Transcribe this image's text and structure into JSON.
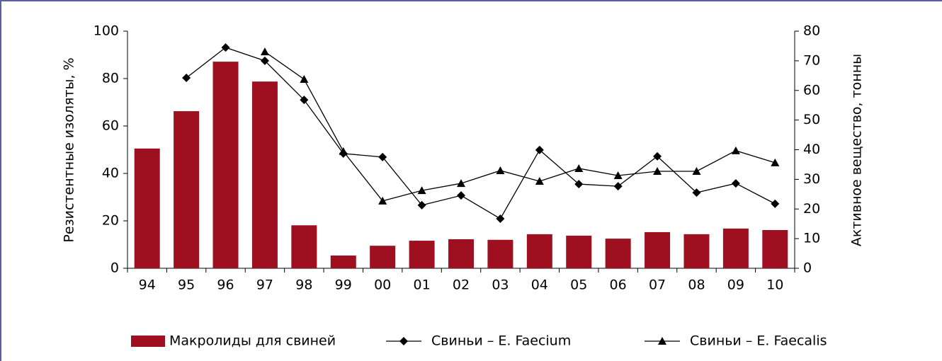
{
  "chart_data": {
    "type": "bar_line",
    "ylabel": "Резистентные изоляты, %",
    "y2label": "Активное вещество, тонны",
    "categories": [
      "94",
      "95",
      "96",
      "97",
      "98",
      "99",
      "00",
      "01",
      "02",
      "03",
      "04",
      "05",
      "06",
      "07",
      "08",
      "09",
      "10"
    ],
    "series": [
      {
        "name": "Макролиды для свиней",
        "type": "bar",
        "axis": "y2",
        "color": "#9e1020",
        "values": [
          40.4,
          53,
          69.7,
          63,
          14.5,
          4.3,
          7.6,
          9.3,
          9.8,
          9.6,
          11.5,
          11,
          10,
          12.2,
          11.5,
          13.4,
          12.9
        ]
      },
      {
        "name": "Свиньи – E. Faecium",
        "type": "line",
        "marker": "diamond",
        "color": "#000000",
        "values": [
          null,
          80.3,
          93.1,
          87.5,
          71,
          48.4,
          46.9,
          26.6,
          30.7,
          20.9,
          49.9,
          35.5,
          34.6,
          47.2,
          31.9,
          35.8,
          27.2
        ]
      },
      {
        "name": "Свиньи – E. Faecalis",
        "type": "line",
        "marker": "triangle",
        "color": "#000000",
        "values": [
          null,
          null,
          null,
          91.3,
          79.7,
          49.3,
          28.4,
          32.8,
          35.8,
          41.2,
          36.7,
          42.1,
          39.1,
          40.9,
          40.9,
          49.6,
          44.5
        ]
      }
    ],
    "ylim": [
      0,
      100
    ],
    "yticks": [
      0,
      20,
      40,
      60,
      80,
      100
    ],
    "y2lim": [
      0,
      80
    ],
    "y2ticks": [
      0,
      10,
      20,
      30,
      40,
      50,
      60,
      70,
      80
    ],
    "legend": "bottom"
  }
}
